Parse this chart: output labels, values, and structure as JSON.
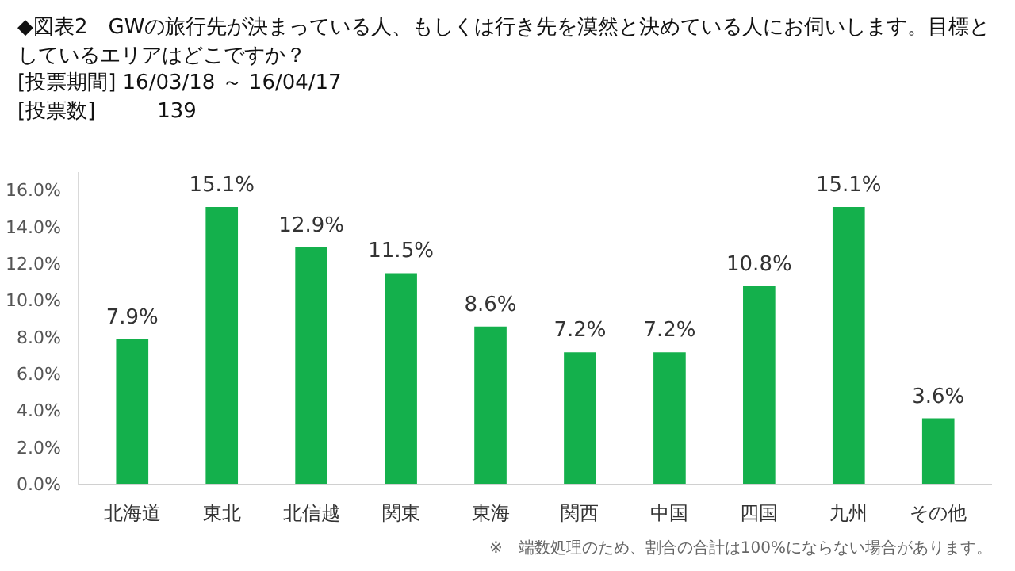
{
  "chart_data": {
    "type": "bar",
    "title": "◆図表2　GWの旅行先が決まっている人、もしくは行き先を漠然と決めている人にお伺いします。目標としているエリアはどこですか？",
    "subtitle": "[投票期間] 16/03/18 ～ 16/04/17\n[投票数]　　　139",
    "categories": [
      "北海道",
      "東北",
      "北信越",
      "関東",
      "東海",
      "関西",
      "中国",
      "四国",
      "九州",
      "その他"
    ],
    "values": [
      7.9,
      15.1,
      12.9,
      11.5,
      8.6,
      7.2,
      7.2,
      10.8,
      15.1,
      3.6
    ],
    "value_labels": [
      "7.9%",
      "15.1%",
      "12.9%",
      "11.5%",
      "8.6%",
      "7.2%",
      "7.2%",
      "10.8%",
      "15.1%",
      "3.6%"
    ],
    "color": "#14b04c",
    "ylim": [
      0,
      17
    ],
    "yticks": [
      {
        "value": 0,
        "label": "0.0%"
      },
      {
        "value": 2,
        "label": "2.0%"
      },
      {
        "value": 4,
        "label": "4.0%"
      },
      {
        "value": 6,
        "label": "6.0%"
      },
      {
        "value": 8,
        "label": "8.0%"
      },
      {
        "value": 10,
        "label": "10.0%"
      },
      {
        "value": 12,
        "label": "12.0%"
      },
      {
        "value": 14,
        "label": "14.0%"
      },
      {
        "value": 16,
        "label": "16.0%"
      }
    ],
    "grid": false,
    "annotations": [
      "※　端数処理のため、割合の合計は100%にならない場合があります。"
    ]
  }
}
